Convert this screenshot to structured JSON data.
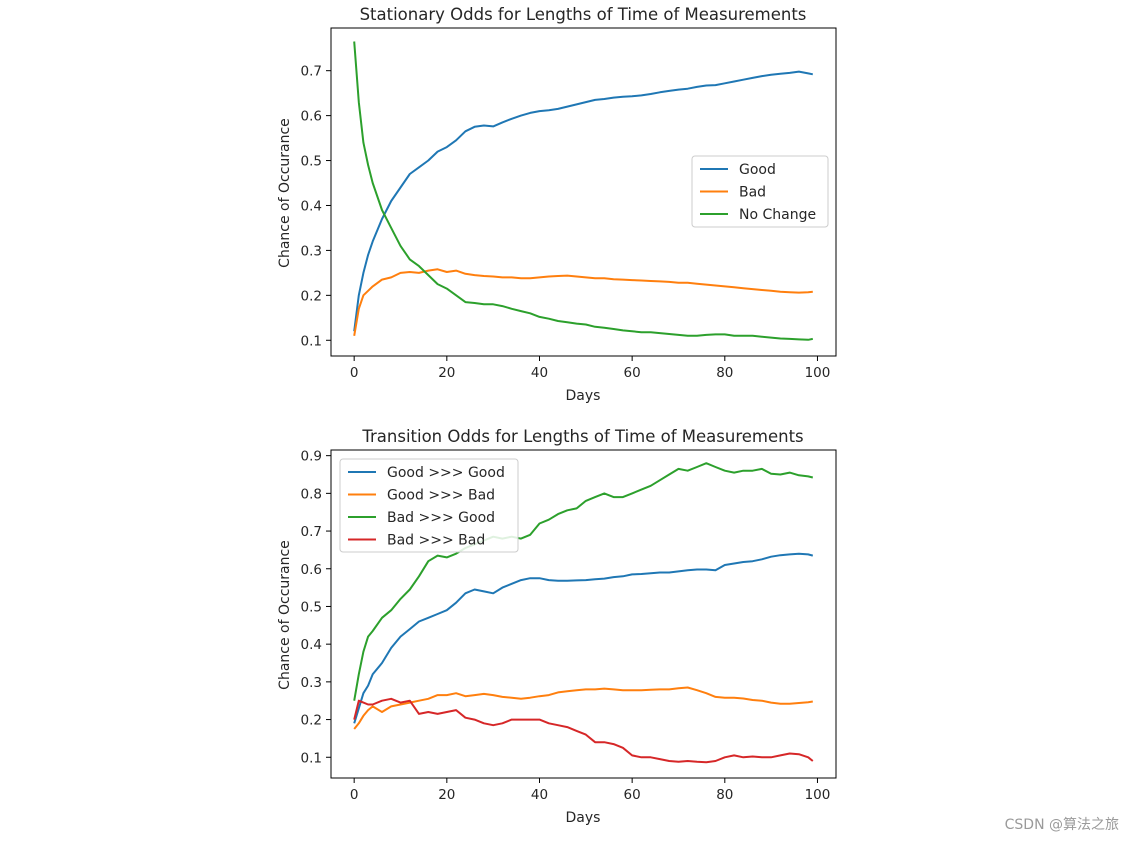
{
  "watermark": "CSDN @算法之旅",
  "chart_data": [
    {
      "type": "line",
      "title": "Stationary Odds for Lengths of Time of Measurements",
      "xlabel": "Days",
      "ylabel": "Chance of Occurance",
      "xlim": [
        -5,
        104
      ],
      "ylim": [
        0.065,
        0.795
      ],
      "xticks": [
        0,
        20,
        40,
        60,
        80,
        100
      ],
      "yticks": [
        0.1,
        0.2,
        0.3,
        0.4,
        0.5,
        0.6,
        0.7
      ],
      "legend": "center-right",
      "grid": false,
      "series": [
        {
          "name": "Good",
          "color": "#1f77b4",
          "x": [
            0,
            1,
            2,
            3,
            4,
            6,
            8,
            10,
            12,
            14,
            16,
            18,
            20,
            22,
            24,
            26,
            28,
            30,
            32,
            34,
            36,
            38,
            40,
            42,
            44,
            46,
            48,
            50,
            52,
            54,
            56,
            58,
            60,
            62,
            64,
            66,
            68,
            70,
            72,
            74,
            76,
            78,
            80,
            82,
            84,
            86,
            88,
            90,
            92,
            94,
            96,
            98,
            99
          ],
          "y": [
            0.12,
            0.2,
            0.25,
            0.29,
            0.32,
            0.37,
            0.41,
            0.44,
            0.47,
            0.485,
            0.5,
            0.52,
            0.53,
            0.545,
            0.565,
            0.575,
            0.578,
            0.576,
            0.585,
            0.593,
            0.6,
            0.606,
            0.61,
            0.612,
            0.615,
            0.62,
            0.625,
            0.63,
            0.635,
            0.637,
            0.64,
            0.642,
            0.643,
            0.645,
            0.648,
            0.652,
            0.655,
            0.658,
            0.66,
            0.664,
            0.667,
            0.668,
            0.672,
            0.676,
            0.68,
            0.684,
            0.688,
            0.691,
            0.693,
            0.695,
            0.698,
            0.694,
            0.692
          ]
        },
        {
          "name": "Bad",
          "color": "#ff7f0e",
          "x": [
            0,
            1,
            2,
            3,
            4,
            6,
            8,
            10,
            12,
            14,
            16,
            18,
            20,
            22,
            24,
            26,
            28,
            30,
            32,
            34,
            36,
            38,
            40,
            42,
            44,
            46,
            48,
            50,
            52,
            54,
            56,
            58,
            60,
            62,
            64,
            66,
            68,
            70,
            72,
            74,
            76,
            78,
            80,
            82,
            84,
            86,
            88,
            90,
            92,
            94,
            96,
            98,
            99
          ],
          "y": [
            0.11,
            0.17,
            0.2,
            0.21,
            0.22,
            0.235,
            0.24,
            0.25,
            0.252,
            0.25,
            0.255,
            0.258,
            0.252,
            0.255,
            0.248,
            0.245,
            0.243,
            0.242,
            0.24,
            0.24,
            0.238,
            0.238,
            0.24,
            0.242,
            0.243,
            0.244,
            0.242,
            0.24,
            0.238,
            0.238,
            0.236,
            0.235,
            0.234,
            0.233,
            0.232,
            0.231,
            0.23,
            0.228,
            0.228,
            0.226,
            0.224,
            0.222,
            0.22,
            0.218,
            0.216,
            0.214,
            0.212,
            0.21,
            0.208,
            0.207,
            0.206,
            0.207,
            0.208
          ]
        },
        {
          "name": "No Change",
          "color": "#2ca02c",
          "x": [
            0,
            1,
            2,
            3,
            4,
            6,
            8,
            10,
            12,
            14,
            16,
            18,
            20,
            22,
            24,
            26,
            28,
            30,
            32,
            34,
            36,
            38,
            40,
            42,
            44,
            46,
            48,
            50,
            52,
            54,
            56,
            58,
            60,
            62,
            64,
            66,
            68,
            70,
            72,
            74,
            76,
            78,
            80,
            82,
            84,
            86,
            88,
            90,
            92,
            94,
            96,
            98,
            99
          ],
          "y": [
            0.765,
            0.63,
            0.54,
            0.49,
            0.45,
            0.39,
            0.35,
            0.31,
            0.28,
            0.265,
            0.245,
            0.225,
            0.215,
            0.2,
            0.185,
            0.183,
            0.18,
            0.18,
            0.176,
            0.17,
            0.165,
            0.16,
            0.152,
            0.148,
            0.143,
            0.14,
            0.137,
            0.135,
            0.13,
            0.128,
            0.125,
            0.122,
            0.12,
            0.118,
            0.118,
            0.116,
            0.114,
            0.112,
            0.11,
            0.11,
            0.112,
            0.113,
            0.113,
            0.11,
            0.11,
            0.11,
            0.108,
            0.106,
            0.104,
            0.103,
            0.102,
            0.101,
            0.103
          ]
        }
      ]
    },
    {
      "type": "line",
      "title": "Transition Odds for Lengths of Time of Measurements",
      "xlabel": "Days",
      "ylabel": "Chance of Occurance",
      "xlim": [
        -5,
        104
      ],
      "ylim": [
        0.045,
        0.915
      ],
      "xticks": [
        0,
        20,
        40,
        60,
        80,
        100
      ],
      "yticks": [
        0.1,
        0.2,
        0.3,
        0.4,
        0.5,
        0.6,
        0.7,
        0.8,
        0.9
      ],
      "legend": "upper-left",
      "grid": false,
      "series": [
        {
          "name": "Good >>> Good",
          "color": "#1f77b4",
          "x": [
            0,
            1,
            2,
            3,
            4,
            6,
            8,
            10,
            12,
            14,
            16,
            18,
            20,
            22,
            24,
            26,
            28,
            30,
            32,
            34,
            36,
            38,
            40,
            42,
            44,
            46,
            48,
            50,
            52,
            54,
            56,
            58,
            60,
            62,
            64,
            66,
            68,
            70,
            72,
            74,
            76,
            78,
            80,
            82,
            84,
            86,
            88,
            90,
            92,
            94,
            96,
            98,
            99
          ],
          "y": [
            0.19,
            0.23,
            0.27,
            0.29,
            0.32,
            0.35,
            0.39,
            0.42,
            0.44,
            0.46,
            0.47,
            0.48,
            0.49,
            0.51,
            0.535,
            0.545,
            0.54,
            0.535,
            0.55,
            0.56,
            0.57,
            0.575,
            0.575,
            0.57,
            0.568,
            0.568,
            0.569,
            0.57,
            0.572,
            0.574,
            0.578,
            0.58,
            0.585,
            0.586,
            0.588,
            0.59,
            0.59,
            0.593,
            0.596,
            0.598,
            0.598,
            0.596,
            0.61,
            0.614,
            0.618,
            0.62,
            0.625,
            0.632,
            0.636,
            0.638,
            0.64,
            0.638,
            0.635
          ]
        },
        {
          "name": "Good >>> Bad",
          "color": "#ff7f0e",
          "x": [
            0,
            1,
            2,
            3,
            4,
            6,
            8,
            10,
            12,
            14,
            16,
            18,
            20,
            22,
            24,
            26,
            28,
            30,
            32,
            34,
            36,
            38,
            40,
            42,
            44,
            46,
            48,
            50,
            52,
            54,
            56,
            58,
            60,
            62,
            64,
            66,
            68,
            70,
            72,
            74,
            76,
            78,
            80,
            82,
            84,
            86,
            88,
            90,
            92,
            94,
            96,
            98,
            99
          ],
          "y": [
            0.175,
            0.19,
            0.21,
            0.225,
            0.235,
            0.22,
            0.235,
            0.24,
            0.245,
            0.25,
            0.255,
            0.265,
            0.265,
            0.27,
            0.262,
            0.265,
            0.268,
            0.265,
            0.26,
            0.258,
            0.255,
            0.258,
            0.262,
            0.265,
            0.272,
            0.275,
            0.278,
            0.28,
            0.28,
            0.282,
            0.28,
            0.278,
            0.278,
            0.278,
            0.279,
            0.28,
            0.28,
            0.283,
            0.285,
            0.278,
            0.27,
            0.26,
            0.258,
            0.258,
            0.256,
            0.252,
            0.25,
            0.245,
            0.242,
            0.242,
            0.244,
            0.246,
            0.248
          ]
        },
        {
          "name": "Bad >>> Good",
          "color": "#2ca02c",
          "x": [
            0,
            1,
            2,
            3,
            4,
            6,
            8,
            10,
            12,
            14,
            16,
            18,
            20,
            22,
            24,
            26,
            28,
            30,
            32,
            34,
            36,
            38,
            40,
            42,
            44,
            46,
            48,
            50,
            52,
            54,
            56,
            58,
            60,
            62,
            64,
            66,
            68,
            70,
            72,
            74,
            76,
            78,
            80,
            82,
            84,
            86,
            88,
            90,
            92,
            94,
            96,
            98,
            99
          ],
          "y": [
            0.25,
            0.32,
            0.38,
            0.42,
            0.435,
            0.47,
            0.49,
            0.52,
            0.545,
            0.58,
            0.62,
            0.635,
            0.63,
            0.64,
            0.655,
            0.665,
            0.675,
            0.685,
            0.68,
            0.685,
            0.68,
            0.69,
            0.72,
            0.73,
            0.745,
            0.755,
            0.76,
            0.78,
            0.79,
            0.8,
            0.79,
            0.79,
            0.8,
            0.81,
            0.82,
            0.835,
            0.85,
            0.865,
            0.86,
            0.87,
            0.88,
            0.87,
            0.86,
            0.855,
            0.86,
            0.86,
            0.865,
            0.852,
            0.85,
            0.855,
            0.848,
            0.845,
            0.842
          ]
        },
        {
          "name": "Bad >>> Bad",
          "color": "#d62728",
          "x": [
            0,
            1,
            2,
            3,
            4,
            6,
            8,
            10,
            12,
            14,
            16,
            18,
            20,
            22,
            24,
            26,
            28,
            30,
            32,
            34,
            36,
            38,
            40,
            42,
            44,
            46,
            48,
            50,
            52,
            54,
            56,
            58,
            60,
            62,
            64,
            66,
            68,
            70,
            72,
            74,
            76,
            78,
            80,
            82,
            84,
            86,
            88,
            90,
            92,
            94,
            96,
            98,
            99
          ],
          "y": [
            0.2,
            0.25,
            0.245,
            0.24,
            0.24,
            0.25,
            0.255,
            0.245,
            0.25,
            0.215,
            0.22,
            0.215,
            0.22,
            0.225,
            0.205,
            0.2,
            0.19,
            0.185,
            0.19,
            0.2,
            0.2,
            0.2,
            0.2,
            0.19,
            0.185,
            0.18,
            0.17,
            0.16,
            0.14,
            0.14,
            0.135,
            0.125,
            0.105,
            0.1,
            0.1,
            0.095,
            0.09,
            0.088,
            0.09,
            0.088,
            0.087,
            0.09,
            0.1,
            0.105,
            0.1,
            0.102,
            0.1,
            0.1,
            0.105,
            0.11,
            0.108,
            0.1,
            0.09
          ]
        }
      ]
    }
  ]
}
